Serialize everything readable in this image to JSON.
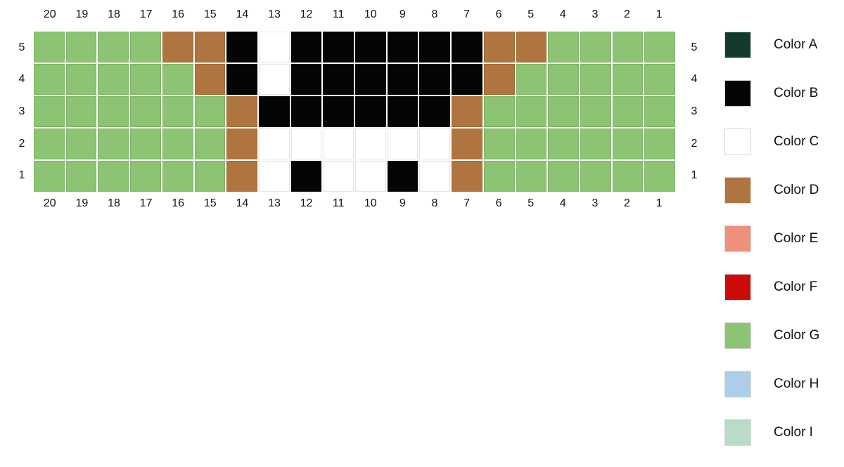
{
  "chart_data": {
    "type": "heatmap",
    "title": "",
    "description": "20x5 color pattern grid (pixel/knitting chart) with mirrored column numbers on top and bottom and row numbers on both sides",
    "columns": [
      20,
      19,
      18,
      17,
      16,
      15,
      14,
      13,
      12,
      11,
      10,
      9,
      8,
      7,
      6,
      5,
      4,
      3,
      2,
      1
    ],
    "rows": [
      5,
      4,
      3,
      2,
      1
    ],
    "grid": [
      "GGGGDDBCBBBBBBDDGGGG",
      "GGGGGDBCBBBBBBDGGGGG",
      "GGGGGGDBBBBBBDGGGGGG",
      "GGGGGGDCCCCCCDGGGGGG",
      "GGGGGGDCBCCBCDGGGGGG"
    ],
    "palette": {
      "A": "#123b2e",
      "B": "#050505",
      "C": "#ffffff",
      "D": "#b0753f",
      "E": "#ef907c",
      "F": "#cc0b06",
      "G": "#8cc474",
      "H": "#aecde8",
      "I": "#b8dcc8"
    },
    "grid_gap_color": "#ffffff",
    "legend_position": "right"
  },
  "legend": {
    "items": [
      {
        "code": "A",
        "label": "Color A",
        "color": "#123b2e"
      },
      {
        "code": "B",
        "label": "Color B",
        "color": "#050505"
      },
      {
        "code": "C",
        "label": "Color C",
        "color": "#ffffff"
      },
      {
        "code": "D",
        "label": "Color D",
        "color": "#b0753f"
      },
      {
        "code": "E",
        "label": "Color E",
        "color": "#ef907c"
      },
      {
        "code": "F",
        "label": "Color F",
        "color": "#cc0b06"
      },
      {
        "code": "G",
        "label": "Color G",
        "color": "#8cc474"
      },
      {
        "code": "H",
        "label": "Color H",
        "color": "#aecde8"
      },
      {
        "code": "I",
        "label": "Color I",
        "color": "#b8dcc8"
      }
    ]
  }
}
